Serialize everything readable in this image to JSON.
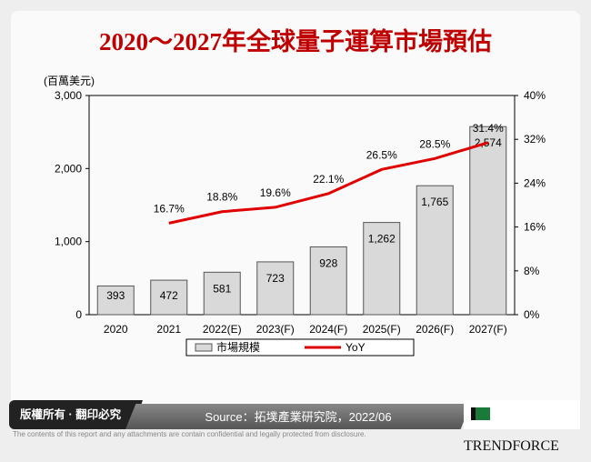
{
  "title": "2020～2027年全球量子運算市場預估",
  "chart_data": {
    "type": "bar+line",
    "title": "2020～2027年全球量子運算市場預估",
    "ylabel": "(百萬美元)",
    "categories": [
      "2020",
      "2021",
      "2022(E)",
      "2023(F)",
      "2024(F)",
      "2025(F)",
      "2026(F)",
      "2027(F)"
    ],
    "series": [
      {
        "name": "市場規模",
        "type": "bar",
        "axis": "left",
        "values": [
          393,
          472,
          581,
          723,
          928,
          1262,
          1765,
          2574
        ],
        "labels": [
          "393",
          "472",
          "581",
          "723",
          "928",
          "1,262",
          "1,765",
          "2,574"
        ],
        "color": "#d9d9d9"
      },
      {
        "name": "YoY",
        "type": "line",
        "axis": "right",
        "values": [
          null,
          16.7,
          18.8,
          19.6,
          22.1,
          26.5,
          28.5,
          31.4
        ],
        "labels": [
          "",
          "16.7%",
          "18.8%",
          "19.6%",
          "22.1%",
          "26.5%",
          "28.5%",
          "31.4%"
        ],
        "color": "#e00000"
      }
    ],
    "ylim": [
      0,
      3000
    ],
    "yticks": [
      "0",
      "1,000",
      "2,000",
      "3,000"
    ],
    "y2lim": [
      0,
      40
    ],
    "y2ticks": [
      "0%",
      "8%",
      "16%",
      "24%",
      "32%",
      "40%"
    ],
    "grid": false,
    "legend": "bottom"
  },
  "footer": {
    "copyright": "版權所有 · 翻印必究",
    "source": "Source：拓墣產業研究院，2022/06",
    "logo": "TRENDFORCE",
    "disclaimer": "The contents of this report and any attachments are contain confidential and legally protected from disclosure."
  }
}
